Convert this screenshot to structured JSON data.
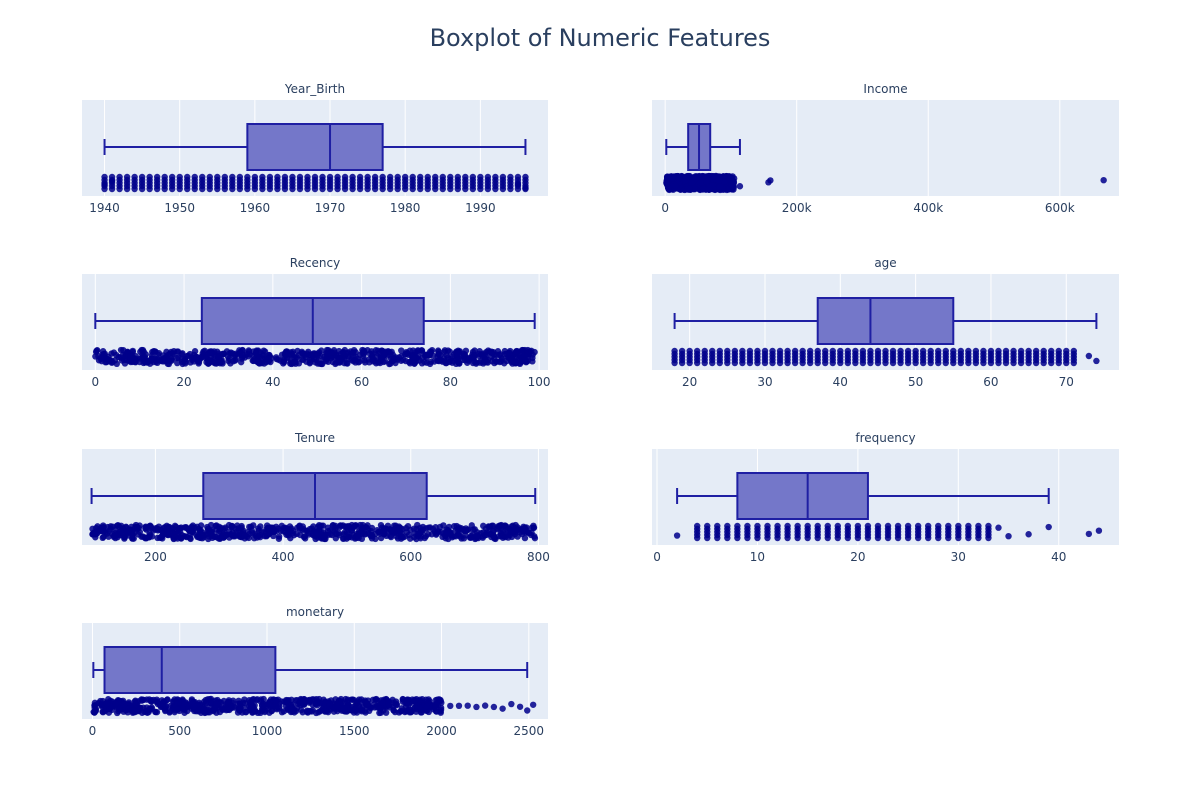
{
  "figure": {
    "title": "Boxplot of Numeric Features",
    "box_fill": "#7477c9",
    "box_line": "#1f1fa3",
    "point_color": "#00008b",
    "plot_bg": "#e5ecf6",
    "grid_color": "#ffffff",
    "text_color": "#2a3f5f"
  },
  "chart_data": [
    {
      "type": "box",
      "title": "Year_Birth",
      "xlim": [
        1937,
        1999
      ],
      "ticks": [
        1940,
        1950,
        1960,
        1970,
        1980,
        1990
      ],
      "tick_labels": [
        "1940",
        "1950",
        "1960",
        "1970",
        "1980",
        "1990"
      ],
      "lower_fence": 1940,
      "q1": 1959,
      "median": 1970,
      "q3": 1977,
      "upper_fence": 1996,
      "points_range": [
        1940,
        1996
      ],
      "points_extra": [
        1940,
        1941,
        1995,
        1996
      ],
      "points_style": "integer-columns"
    },
    {
      "type": "box",
      "title": "Income",
      "xlim": [
        -20000,
        690000
      ],
      "ticks": [
        0,
        200000,
        400000,
        600000
      ],
      "tick_labels": [
        "0",
        "200k",
        "400k",
        "600k"
      ],
      "lower_fence": 1730,
      "q1": 35000,
      "median": 51500,
      "q3": 68500,
      "upper_fence": 113700,
      "points_range": [
        1730,
        105000
      ],
      "points_extra": [
        113700,
        157000,
        160000,
        666666
      ],
      "points_style": "dense"
    },
    {
      "type": "box",
      "title": "Recency",
      "xlim": [
        -3,
        102
      ],
      "ticks": [
        0,
        20,
        40,
        60,
        80,
        100
      ],
      "tick_labels": [
        "0",
        "20",
        "40",
        "60",
        "80",
        "100"
      ],
      "lower_fence": 0,
      "q1": 24,
      "median": 49,
      "q3": 74,
      "upper_fence": 99,
      "points_range": [
        0,
        99
      ],
      "points_extra": [],
      "points_style": "dense"
    },
    {
      "type": "box",
      "title": "age",
      "xlim": [
        15,
        77
      ],
      "ticks": [
        20,
        30,
        40,
        50,
        60,
        70
      ],
      "tick_labels": [
        "20",
        "30",
        "40",
        "50",
        "60",
        "70"
      ],
      "lower_fence": 18,
      "q1": 37,
      "median": 44,
      "q3": 55,
      "upper_fence": 74,
      "points_range": [
        18,
        71
      ],
      "points_extra": [
        73,
        74
      ],
      "points_style": "integer-columns"
    },
    {
      "type": "box",
      "title": "Tenure",
      "xlim": [
        85,
        815
      ],
      "ticks": [
        200,
        400,
        600,
        800
      ],
      "tick_labels": [
        "200",
        "400",
        "600",
        "800"
      ],
      "lower_fence": 100,
      "q1": 275,
      "median": 450,
      "q3": 625,
      "upper_fence": 795,
      "points_range": [
        100,
        795
      ],
      "points_extra": [],
      "points_style": "dense"
    },
    {
      "type": "box",
      "title": "frequency",
      "xlim": [
        -0.5,
        46
      ],
      "ticks": [
        0,
        10,
        20,
        30,
        40
      ],
      "tick_labels": [
        "0",
        "10",
        "20",
        "30",
        "40"
      ],
      "lower_fence": 2,
      "q1": 8,
      "median": 15,
      "q3": 21,
      "upper_fence": 39,
      "points_range": [
        4,
        33
      ],
      "points_extra": [
        2,
        34,
        35,
        37,
        39,
        43,
        44
      ],
      "points_style": "integer-columns"
    },
    {
      "type": "box",
      "title": "monetary",
      "xlim": [
        -60,
        2610
      ],
      "ticks": [
        0,
        500,
        1000,
        1500,
        2000,
        2500
      ],
      "tick_labels": [
        "0",
        "500",
        "1000",
        "1500",
        "2000",
        "2500"
      ],
      "lower_fence": 5,
      "q1": 69,
      "median": 397,
      "q3": 1048,
      "upper_fence": 2491,
      "points_range": [
        5,
        2000
      ],
      "points_extra": [
        2050,
        2100,
        2150,
        2200,
        2250,
        2300,
        2350,
        2400,
        2450,
        2491,
        2525
      ],
      "points_style": "dense"
    }
  ]
}
